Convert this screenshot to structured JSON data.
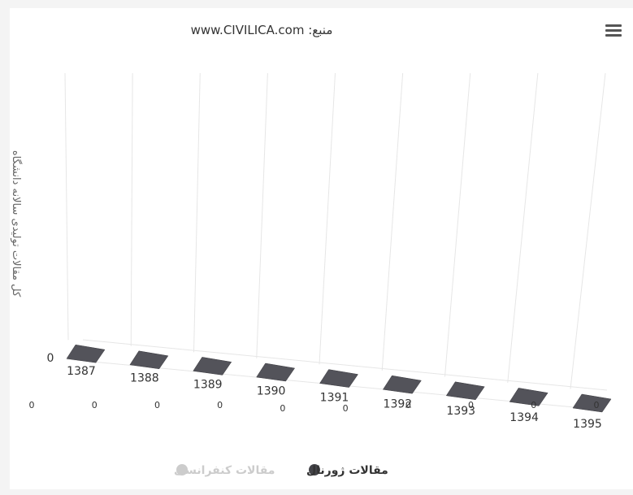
{
  "subtitle": "منبع: www.CIVILICA.com",
  "yaxis_title": "کل مقالات تولیدی سالانه دانشگاه",
  "menu_icon": "hamburger-menu-icon",
  "colors": {
    "journal": "#434348",
    "journal_top": "#53535a",
    "conference": "#cccccc",
    "grid": "#e6e6e6",
    "text": "#333333",
    "label": "#666666"
  },
  "chart_data": {
    "type": "bar",
    "title": "",
    "subtitle": "منبع: www.CIVILICA.com",
    "xlabel": "",
    "ylabel": "کل مقالات تولیدی سالانه دانشگاه",
    "categories": [
      "1387",
      "1388",
      "1389",
      "1390",
      "1391",
      "1392",
      "1393",
      "1394",
      "1395"
    ],
    "y_tick_labels": [
      "0"
    ],
    "series": [
      {
        "name": "مقالات ژورنال",
        "values": [
          0,
          0,
          0,
          0,
          0,
          0,
          0,
          0,
          0
        ],
        "color": "#434348",
        "visible": true
      },
      {
        "name": "مقالات کنفرانسی",
        "values": [
          0,
          0,
          0,
          0,
          0,
          0,
          0,
          0,
          0
        ],
        "color": "#cccccc",
        "visible": false
      }
    ],
    "grid": true,
    "legend_position": "bottom-center",
    "three_d": true
  }
}
